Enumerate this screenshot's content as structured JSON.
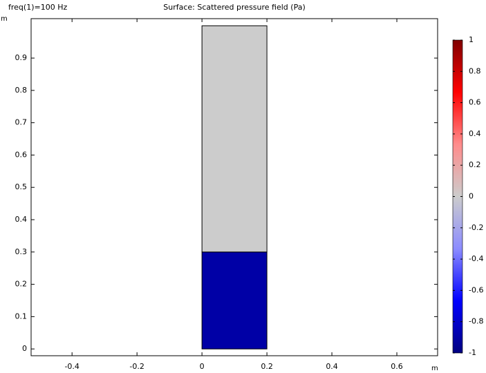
{
  "chart_data": {
    "type": "surface",
    "label": "freq(1)=100 Hz",
    "title": "Surface: Scattered pressure field (Pa)",
    "x_unit": "m",
    "y_unit": "m",
    "xlim": [
      -0.526,
      0.7255
    ],
    "ylim": [
      -0.021,
      1.022
    ],
    "xticks": [
      -0.4,
      -0.2,
      0,
      0.2,
      0.4,
      0.6
    ],
    "yticks": [
      0,
      0.1,
      0.2,
      0.3,
      0.4,
      0.5,
      0.6,
      0.7,
      0.8,
      0.9
    ],
    "regions": [
      {
        "x": [
          0,
          0.2
        ],
        "y": [
          0,
          0.3
        ],
        "value": -0.9
      },
      {
        "x": [
          0,
          0.2
        ],
        "y": [
          0.3,
          1
        ],
        "value": 0
      }
    ],
    "colorbar": {
      "lim": [
        -1,
        1
      ],
      "ticks": [
        -1,
        -0.8,
        -0.6,
        -0.4,
        -0.2,
        0,
        0.2,
        0.4,
        0.6,
        0.8,
        1
      ],
      "colors": [
        "#000080",
        "#0000ff",
        "#8c8cff",
        "#cccccc",
        "#ff8c8c",
        "#ff0000",
        "#800000"
      ]
    }
  }
}
